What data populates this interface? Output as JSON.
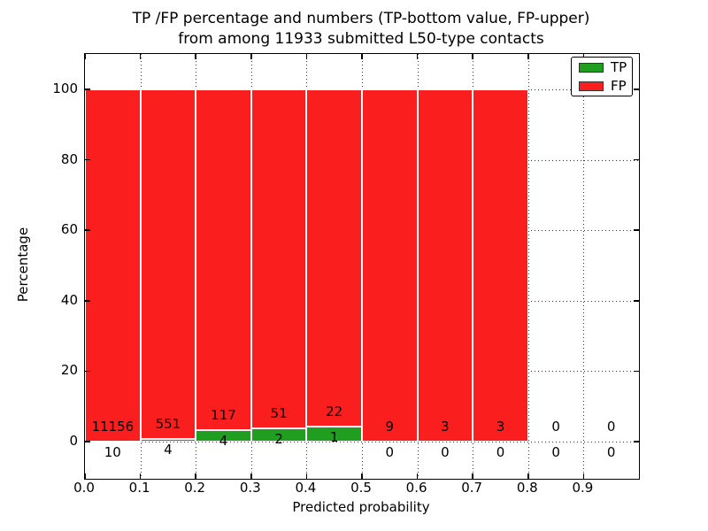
{
  "figure": {
    "title_line1": "TP /FP percentage and numbers (TP-bottom value, FP-upper)",
    "title_line2": "from among 11933 submitted L50-type contacts",
    "xlabel": "Predicted probability",
    "ylabel": "Percentage"
  },
  "legend": {
    "items": [
      {
        "label": "TP",
        "color": "#1f9e1f"
      },
      {
        "label": "FP",
        "color": "#fa1e1e"
      }
    ]
  },
  "chart_data": {
    "type": "bar",
    "stacked": true,
    "title": "TP /FP percentage and numbers (TP-bottom value, FP-upper) from among 11933 submitted L50-type contacts",
    "xlabel": "Predicted probability",
    "ylabel": "Percentage",
    "total_contacts": 11933,
    "grid": "dotted",
    "legend_position": "upper right",
    "x_tick_labels": [
      "0.0",
      "0.1",
      "0.2",
      "0.3",
      "0.4",
      "0.5",
      "0.6",
      "0.7",
      "0.8",
      "0.9"
    ],
    "y_ticks": [
      0,
      20,
      40,
      60,
      80,
      100
    ],
    "xlim": [
      0.0,
      1.0
    ],
    "ylim": [
      -10.5,
      110.5
    ],
    "bin_width": 0.1,
    "bins": [
      {
        "range": "0.0-0.1",
        "tp": 10,
        "fp": 11156
      },
      {
        "range": "0.1-0.2",
        "tp": 4,
        "fp": 551
      },
      {
        "range": "0.2-0.3",
        "tp": 4,
        "fp": 117
      },
      {
        "range": "0.3-0.4",
        "tp": 2,
        "fp": 51
      },
      {
        "range": "0.4-0.5",
        "tp": 1,
        "fp": 22
      },
      {
        "range": "0.5-0.6",
        "tp": 0,
        "fp": 9
      },
      {
        "range": "0.6-0.7",
        "tp": 0,
        "fp": 3
      },
      {
        "range": "0.7-0.8",
        "tp": 0,
        "fp": 3
      },
      {
        "range": "0.8-0.9",
        "tp": 0,
        "fp": 0
      },
      {
        "range": "0.9-1.0",
        "tp": 0,
        "fp": 0
      }
    ],
    "series": [
      {
        "name": "TP",
        "color": "#1f9e1f",
        "values_pct": [
          0.09,
          0.72,
          3.31,
          3.77,
          4.35,
          0,
          0,
          0,
          0,
          0
        ]
      },
      {
        "name": "FP",
        "color": "#fa1e1e",
        "values_pct": [
          99.91,
          99.28,
          96.69,
          96.23,
          95.65,
          100,
          100,
          100,
          0,
          0
        ]
      }
    ]
  }
}
